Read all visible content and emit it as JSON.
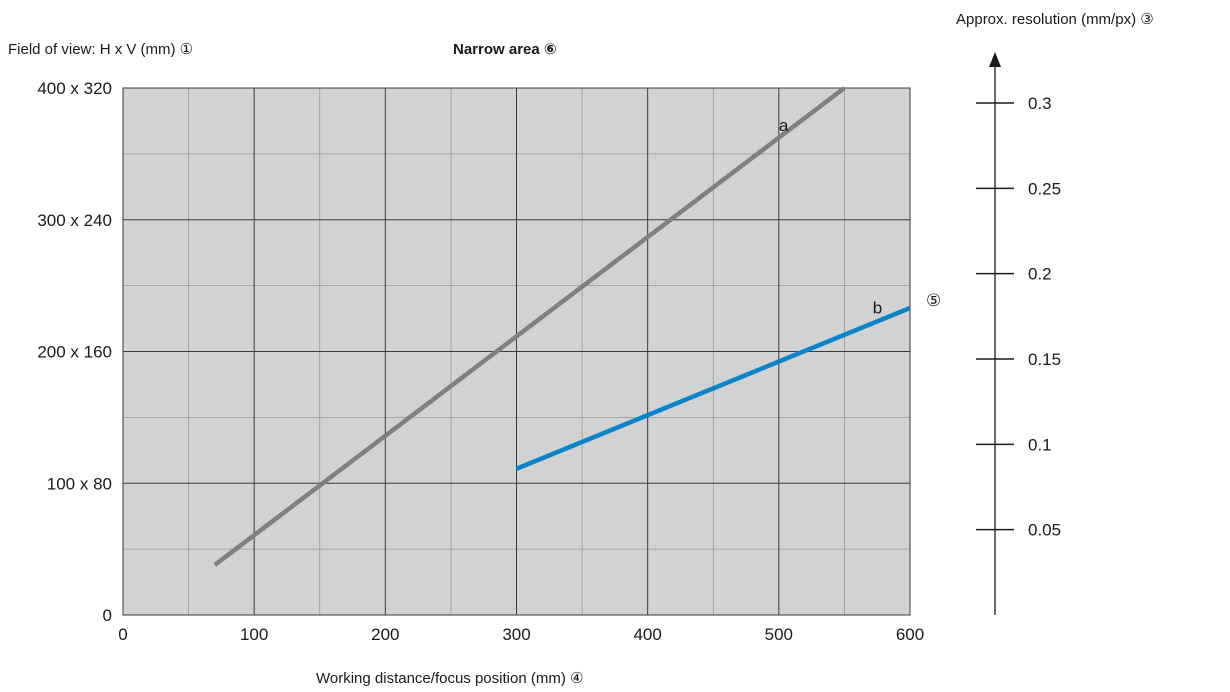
{
  "chart_data": {
    "type": "line",
    "title": "Narrow area ⑥",
    "ylabel": "Field of view: H x V (mm) ①",
    "xlabel": "Working distance/focus position (mm) ④",
    "resolution_label": "Approx. resolution (mm/px) ③",
    "callout_5": "⑤",
    "xlim": [
      0,
      600
    ],
    "ylim": [
      0,
      400
    ],
    "x_ticks": [
      0,
      100,
      200,
      300,
      400,
      500,
      600
    ],
    "x_tick_labels": [
      "0",
      "100",
      "200",
      "300",
      "400",
      "500",
      "600"
    ],
    "y_ticks": [
      0,
      100,
      200,
      300,
      400
    ],
    "y_tick_labels": [
      "0",
      "100 x 80",
      "200 x 160",
      "300 x 240",
      "400 x 320"
    ],
    "grid": true,
    "series": [
      {
        "name": "a",
        "color": "#808080",
        "x": [
          70,
          550
        ],
        "y": [
          38,
          400
        ]
      },
      {
        "name": "b",
        "color": "#0a84c8",
        "x": [
          300,
          600
        ],
        "y": [
          111,
          233
        ]
      }
    ],
    "resolution_axis": {
      "ticks": [
        0.05,
        0.1,
        0.15,
        0.2,
        0.25,
        0.3
      ],
      "tick_labels": [
        "0.05",
        "0.1",
        "0.15",
        "0.2",
        "0.25",
        "0.3"
      ]
    }
  }
}
